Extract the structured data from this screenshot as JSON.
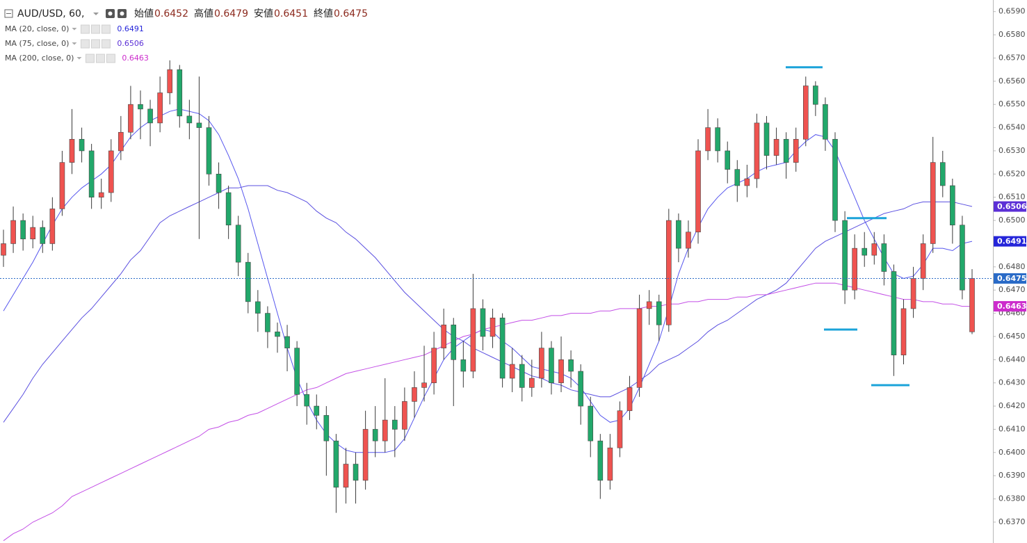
{
  "chart_data": {
    "type": "candlestick",
    "symbol": "AUD/USD, 60,",
    "header": {
      "labels": [
        "始値",
        "高値",
        "安値",
        "終値"
      ],
      "values": [
        0.6452,
        0.6479,
        0.6451,
        0.6475
      ]
    },
    "up_color": "#ef5350",
    "down_color": "#22a86b",
    "wick_color": "#3a3a3a",
    "ohlc": [
      [
        0.6485,
        0.6496,
        0.648,
        0.649
      ],
      [
        0.649,
        0.6506,
        0.6486,
        0.65
      ],
      [
        0.65,
        0.6503,
        0.6487,
        0.6492
      ],
      [
        0.6492,
        0.6502,
        0.6488,
        0.6497
      ],
      [
        0.6497,
        0.65,
        0.6486,
        0.649
      ],
      [
        0.649,
        0.651,
        0.6487,
        0.6505
      ],
      [
        0.6505,
        0.653,
        0.6502,
        0.6525
      ],
      [
        0.6525,
        0.6548,
        0.652,
        0.6535
      ],
      [
        0.6535,
        0.654,
        0.6525,
        0.653
      ],
      [
        0.653,
        0.6533,
        0.6505,
        0.651
      ],
      [
        0.651,
        0.6518,
        0.6505,
        0.6512
      ],
      [
        0.6512,
        0.6535,
        0.6508,
        0.653
      ],
      [
        0.653,
        0.6545,
        0.6526,
        0.6538
      ],
      [
        0.6538,
        0.6558,
        0.6535,
        0.655
      ],
      [
        0.655,
        0.6556,
        0.6535,
        0.6548
      ],
      [
        0.6548,
        0.6552,
        0.6532,
        0.6542
      ],
      [
        0.6542,
        0.6562,
        0.6538,
        0.6555
      ],
      [
        0.6555,
        0.6569,
        0.655,
        0.6565
      ],
      [
        0.6565,
        0.6567,
        0.654,
        0.6545
      ],
      [
        0.6545,
        0.6552,
        0.6535,
        0.6542
      ],
      [
        0.6542,
        0.6562,
        0.6492,
        0.654
      ],
      [
        0.654,
        0.6545,
        0.6515,
        0.652
      ],
      [
        0.652,
        0.6525,
        0.6505,
        0.6512
      ],
      [
        0.6512,
        0.6515,
        0.6492,
        0.6498
      ],
      [
        0.6498,
        0.6502,
        0.6476,
        0.6482
      ],
      [
        0.6482,
        0.6486,
        0.646,
        0.6465
      ],
      [
        0.6465,
        0.647,
        0.6452,
        0.646
      ],
      [
        0.646,
        0.6463,
        0.6445,
        0.6452
      ],
      [
        0.6452,
        0.6456,
        0.6443,
        0.645
      ],
      [
        0.645,
        0.6455,
        0.6435,
        0.6445
      ],
      [
        0.6445,
        0.6448,
        0.642,
        0.6425
      ],
      [
        0.6425,
        0.643,
        0.6412,
        0.642
      ],
      [
        0.642,
        0.6425,
        0.641,
        0.6416
      ],
      [
        0.6416,
        0.642,
        0.639,
        0.6405
      ],
      [
        0.6405,
        0.6408,
        0.6374,
        0.6385
      ],
      [
        0.6385,
        0.6402,
        0.6378,
        0.6395
      ],
      [
        0.6395,
        0.64,
        0.6378,
        0.6388
      ],
      [
        0.6388,
        0.6418,
        0.6384,
        0.641
      ],
      [
        0.641,
        0.642,
        0.6398,
        0.6405
      ],
      [
        0.6405,
        0.6432,
        0.64,
        0.6414
      ],
      [
        0.6414,
        0.642,
        0.6398,
        0.641
      ],
      [
        0.641,
        0.6428,
        0.6405,
        0.6422
      ],
      [
        0.6422,
        0.6435,
        0.6415,
        0.6428
      ],
      [
        0.6428,
        0.6446,
        0.6422,
        0.643
      ],
      [
        0.643,
        0.6452,
        0.6425,
        0.6445
      ],
      [
        0.6445,
        0.6462,
        0.644,
        0.6455
      ],
      [
        0.6455,
        0.6458,
        0.642,
        0.644
      ],
      [
        0.644,
        0.6448,
        0.6428,
        0.6435
      ],
      [
        0.6435,
        0.6477,
        0.6432,
        0.6462
      ],
      [
        0.6462,
        0.6466,
        0.6444,
        0.645
      ],
      [
        0.645,
        0.6462,
        0.6445,
        0.6458
      ],
      [
        0.6458,
        0.646,
        0.6428,
        0.6432
      ],
      [
        0.6432,
        0.6445,
        0.6426,
        0.6438
      ],
      [
        0.6438,
        0.6442,
        0.6422,
        0.6428
      ],
      [
        0.6428,
        0.644,
        0.6424,
        0.6432
      ],
      [
        0.6432,
        0.6452,
        0.6428,
        0.6445
      ],
      [
        0.6445,
        0.6448,
        0.6425,
        0.643
      ],
      [
        0.643,
        0.645,
        0.6426,
        0.644
      ],
      [
        0.644,
        0.6444,
        0.6428,
        0.6435
      ],
      [
        0.6435,
        0.6438,
        0.6412,
        0.642
      ],
      [
        0.642,
        0.6424,
        0.6398,
        0.6405
      ],
      [
        0.6405,
        0.6408,
        0.638,
        0.6388
      ],
      [
        0.6388,
        0.6408,
        0.6384,
        0.6402
      ],
      [
        0.6402,
        0.6422,
        0.6398,
        0.6418
      ],
      [
        0.6418,
        0.6433,
        0.6414,
        0.6428
      ],
      [
        0.6428,
        0.6468,
        0.6424,
        0.6462
      ],
      [
        0.6462,
        0.647,
        0.6455,
        0.6465
      ],
      [
        0.6465,
        0.6468,
        0.6448,
        0.6455
      ],
      [
        0.6455,
        0.6505,
        0.6452,
        0.65
      ],
      [
        0.65,
        0.6503,
        0.6482,
        0.6488
      ],
      [
        0.6488,
        0.65,
        0.6484,
        0.6495
      ],
      [
        0.6495,
        0.6535,
        0.649,
        0.653
      ],
      [
        0.653,
        0.6548,
        0.6526,
        0.654
      ],
      [
        0.654,
        0.6544,
        0.6525,
        0.653
      ],
      [
        0.653,
        0.6534,
        0.6516,
        0.6522
      ],
      [
        0.6522,
        0.6526,
        0.6508,
        0.6515
      ],
      [
        0.6515,
        0.6524,
        0.651,
        0.6518
      ],
      [
        0.6518,
        0.6546,
        0.6514,
        0.6542
      ],
      [
        0.6542,
        0.6545,
        0.6522,
        0.6528
      ],
      [
        0.6528,
        0.654,
        0.6524,
        0.6535
      ],
      [
        0.6535,
        0.6538,
        0.6518,
        0.6525
      ],
      [
        0.6525,
        0.654,
        0.6521,
        0.6535
      ],
      [
        0.6535,
        0.6562,
        0.6532,
        0.6558
      ],
      [
        0.6558,
        0.656,
        0.6545,
        0.655
      ],
      [
        0.655,
        0.6553,
        0.653,
        0.6535
      ],
      [
        0.6535,
        0.6538,
        0.6495,
        0.65
      ],
      [
        0.65,
        0.6504,
        0.6464,
        0.647
      ],
      [
        0.647,
        0.6494,
        0.6466,
        0.6488
      ],
      [
        0.6488,
        0.6495,
        0.648,
        0.6485
      ],
      [
        0.6485,
        0.6495,
        0.6481,
        0.649
      ],
      [
        0.649,
        0.6494,
        0.6472,
        0.6478
      ],
      [
        0.6478,
        0.6481,
        0.6433,
        0.6442
      ],
      [
        0.6442,
        0.6466,
        0.6438,
        0.6462
      ],
      [
        0.6462,
        0.648,
        0.6458,
        0.6475
      ],
      [
        0.6475,
        0.6494,
        0.647,
        0.649
      ],
      [
        0.649,
        0.6536,
        0.6486,
        0.6525
      ],
      [
        0.6525,
        0.653,
        0.651,
        0.6515
      ],
      [
        0.6515,
        0.6518,
        0.649,
        0.6498
      ],
      [
        0.6498,
        0.6502,
        0.6466,
        0.647
      ],
      [
        0.6452,
        0.6479,
        0.6451,
        0.6475
      ]
    ],
    "series": [
      {
        "name": "MA (20, close, 0)",
        "color": "#5555ee",
        "last": 0.6491,
        "last_color": "#2525d9",
        "values": [
          0.6461,
          0.6468,
          0.6475,
          0.6482,
          0.649,
          0.6498,
          0.6505,
          0.651,
          0.6514,
          0.6517,
          0.652,
          0.6524,
          0.653,
          0.6536,
          0.654,
          0.6543,
          0.6545,
          0.6547,
          0.6548,
          0.6547,
          0.6546,
          0.6543,
          0.6537,
          0.6528,
          0.6518,
          0.6505,
          0.649,
          0.6475,
          0.646,
          0.6445,
          0.6432,
          0.6422,
          0.6414,
          0.6408,
          0.6404,
          0.6401,
          0.64,
          0.64,
          0.64,
          0.64,
          0.6401,
          0.6406,
          0.6415,
          0.6424,
          0.6432,
          0.644,
          0.6445,
          0.6448,
          0.6451,
          0.6453,
          0.6452,
          0.6448,
          0.6445,
          0.6441,
          0.6437,
          0.6436,
          0.6435,
          0.6434,
          0.6432,
          0.6428,
          0.6422,
          0.6416,
          0.6413,
          0.6414,
          0.6419,
          0.6428,
          0.6438,
          0.6448,
          0.6462,
          0.6477,
          0.6488,
          0.6497,
          0.6505,
          0.651,
          0.6514,
          0.6516,
          0.6518,
          0.6521,
          0.6523,
          0.6524,
          0.6525,
          0.653,
          0.6534,
          0.6537,
          0.6536,
          0.653,
          0.652,
          0.651,
          0.65,
          0.6492,
          0.6484,
          0.6477,
          0.6475,
          0.6476,
          0.6481,
          0.6488,
          0.6488,
          0.6487,
          0.649,
          0.6491
        ]
      },
      {
        "name": "MA (75, close, 0)",
        "color": "#5a4fe0",
        "last": 0.6506,
        "last_color": "#5b2fd6",
        "values": [
          0.6413,
          0.6419,
          0.6425,
          0.6432,
          0.6438,
          0.6443,
          0.6448,
          0.6453,
          0.6458,
          0.6462,
          0.6467,
          0.6472,
          0.6477,
          0.6483,
          0.6487,
          0.6493,
          0.6499,
          0.6502,
          0.6504,
          0.6506,
          0.6508,
          0.651,
          0.6512,
          0.6514,
          0.6514,
          0.6515,
          0.6515,
          0.6515,
          0.6513,
          0.6512,
          0.651,
          0.6508,
          0.6504,
          0.6501,
          0.6499,
          0.6495,
          0.6492,
          0.6488,
          0.6484,
          0.6479,
          0.6474,
          0.6469,
          0.6465,
          0.6461,
          0.6457,
          0.6453,
          0.645,
          0.6448,
          0.6445,
          0.6443,
          0.6441,
          0.6439,
          0.6437,
          0.6435,
          0.6433,
          0.6432,
          0.643,
          0.6429,
          0.6427,
          0.6426,
          0.6425,
          0.6424,
          0.6424,
          0.6426,
          0.6428,
          0.6431,
          0.6434,
          0.6438,
          0.644,
          0.6442,
          0.6445,
          0.6448,
          0.6452,
          0.6455,
          0.6457,
          0.646,
          0.6463,
          0.6466,
          0.6468,
          0.647,
          0.6473,
          0.6478,
          0.6483,
          0.6488,
          0.6491,
          0.6493,
          0.6495,
          0.6497,
          0.6499,
          0.6501,
          0.6503,
          0.6504,
          0.6505,
          0.6507,
          0.6508,
          0.6508,
          0.6508,
          0.6508,
          0.6507,
          0.6506
        ]
      },
      {
        "name": "MA (200, close, 0)",
        "color": "#c34ee6",
        "last": 0.6463,
        "last_color": "#cc2ccc",
        "values": [
          0.6362,
          0.6365,
          0.6367,
          0.637,
          0.6372,
          0.6374,
          0.6377,
          0.6381,
          0.6383,
          0.6385,
          0.6387,
          0.6389,
          0.6391,
          0.6393,
          0.6395,
          0.6397,
          0.6399,
          0.6401,
          0.6403,
          0.6405,
          0.6407,
          0.641,
          0.6411,
          0.6413,
          0.6414,
          0.6416,
          0.6417,
          0.6419,
          0.6421,
          0.6423,
          0.6425,
          0.6427,
          0.6428,
          0.643,
          0.6432,
          0.6434,
          0.6435,
          0.6436,
          0.6437,
          0.6438,
          0.6439,
          0.644,
          0.6441,
          0.6442,
          0.6444,
          0.6446,
          0.6448,
          0.645,
          0.6451,
          0.6453,
          0.6454,
          0.6455,
          0.6456,
          0.6457,
          0.6457,
          0.6458,
          0.6459,
          0.6459,
          0.646,
          0.646,
          0.646,
          0.6461,
          0.6461,
          0.6462,
          0.6462,
          0.6462,
          0.6463,
          0.6463,
          0.6464,
          0.6464,
          0.6465,
          0.6465,
          0.6466,
          0.6466,
          0.6466,
          0.6467,
          0.6467,
          0.6468,
          0.6468,
          0.6469,
          0.647,
          0.6471,
          0.6472,
          0.6473,
          0.6473,
          0.6473,
          0.6472,
          0.6471,
          0.647,
          0.6469,
          0.6468,
          0.6467,
          0.6466,
          0.6466,
          0.6465,
          0.6465,
          0.6464,
          0.6464,
          0.6463,
          0.6463
        ]
      }
    ],
    "last_price": 0.6475,
    "last_price_color": "#2a6bc7",
    "levels": [
      0.6566,
      0.6501,
      0.6453,
      0.6429
    ],
    "level_color": "#1ba3d9",
    "ylim": [
      0.6361,
      0.6595
    ],
    "yticks": [
      {
        "value": 0.637,
        "label": "0.6370"
      },
      {
        "value": 0.638,
        "label": "0.6380"
      },
      {
        "value": 0.639,
        "label": "0.6390"
      },
      {
        "value": 0.64,
        "label": "0.6400"
      },
      {
        "value": 0.641,
        "label": "0.6410"
      },
      {
        "value": 0.642,
        "label": "0.6420"
      },
      {
        "value": 0.643,
        "label": "0.6430"
      },
      {
        "value": 0.644,
        "label": "0.6440"
      },
      {
        "value": 0.645,
        "label": "0.6450"
      },
      {
        "value": 0.646,
        "label": "0.6460"
      },
      {
        "value": 0.647,
        "label": "0.6470"
      },
      {
        "value": 0.648,
        "label": "0.6480"
      },
      {
        "value": 0.649,
        "label": "0.6490"
      },
      {
        "value": 0.65,
        "label": "0.6500"
      },
      {
        "value": 0.651,
        "label": "0.6510"
      },
      {
        "value": 0.652,
        "label": "0.6520"
      },
      {
        "value": 0.653,
        "label": "0.6530"
      },
      {
        "value": 0.654,
        "label": "0.6540"
      },
      {
        "value": 0.655,
        "label": "0.6550"
      },
      {
        "value": 0.656,
        "label": "0.6560"
      },
      {
        "value": 0.657,
        "label": "0.6570"
      },
      {
        "value": 0.658,
        "label": "0.6580"
      },
      {
        "value": 0.659,
        "label": "0.6590"
      }
    ]
  }
}
